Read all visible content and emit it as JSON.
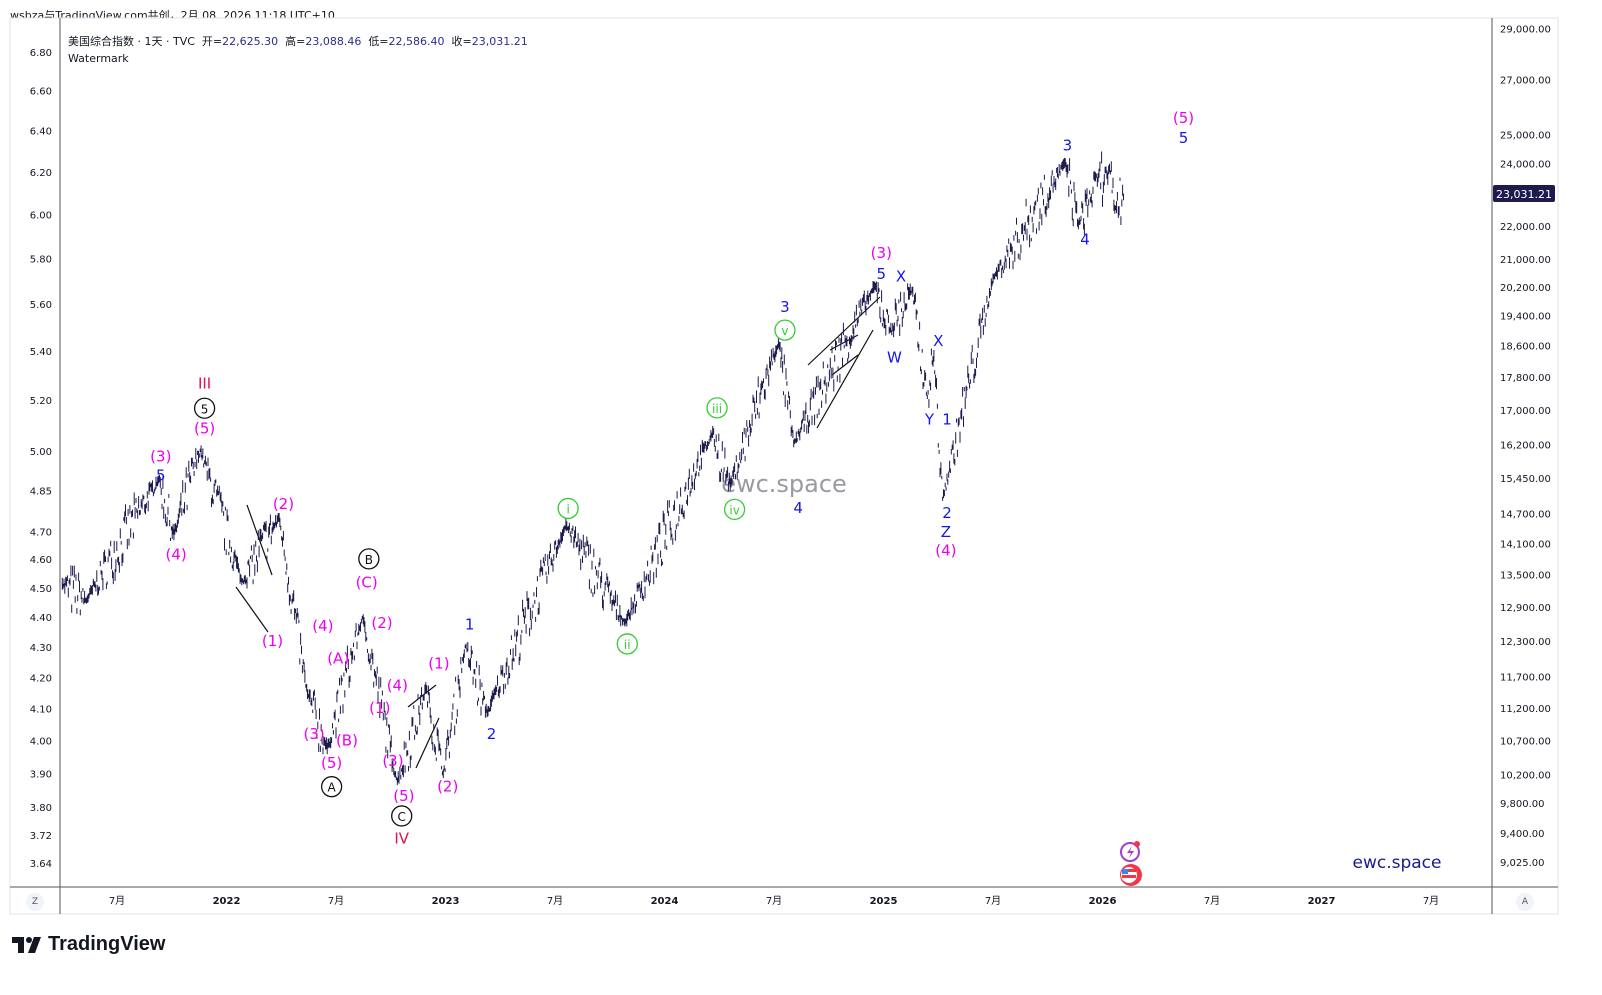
{
  "header": {
    "attribution": "wsbza与TradingView.com共创，2月 08, 2026 11:18 UTC+10"
  },
  "legend": {
    "symbol": "美国综合指数 · 1天 · TVC",
    "open_label": "开=",
    "open": "22,625.30",
    "high_label": "高=",
    "high": "23,088.46",
    "low_label": "低=",
    "low": "22,586.40",
    "close_label": "收=",
    "close": "23,031.21",
    "watermark_label": "Watermark"
  },
  "footer": {
    "brand": "TradingView",
    "z_button": "Z",
    "a_button": "A"
  },
  "colors": {
    "price": "#1c1b4d",
    "magenta": "#ee00ee",
    "blue": "#1515ee",
    "green": "#33cc33",
    "red": "#e0114b",
    "black": "#111111",
    "last_price_bg": "#1e1a4d"
  },
  "chart_data": {
    "type": "line",
    "scale": "log",
    "title": "美国综合指数 · 1天 · TVC",
    "last_price": "23,031.21",
    "watermark": "ewc.space",
    "signature": "ewc.space",
    "x_ticks": [
      {
        "t": 2021.5,
        "label": "7月"
      },
      {
        "t": 2022,
        "label": "2022"
      },
      {
        "t": 2022.5,
        "label": "7月"
      },
      {
        "t": 2023,
        "label": "2023"
      },
      {
        "t": 2023.5,
        "label": "7月"
      },
      {
        "t": 2024,
        "label": "2024"
      },
      {
        "t": 2024.5,
        "label": "7月"
      },
      {
        "t": 2025,
        "label": "2025"
      },
      {
        "t": 2025.5,
        "label": "7月"
      },
      {
        "t": 2026,
        "label": "2026"
      },
      {
        "t": 2026.5,
        "label": "7月"
      },
      {
        "t": 2027,
        "label": "2027"
      },
      {
        "t": 2027.5,
        "label": "7月"
      }
    ],
    "right_ticks": [
      "29,000.00",
      "27,000.00",
      "25,000.00",
      "24,000.00",
      "22,000.00",
      "21,000.00",
      "20,200.00",
      "19,400.00",
      "18,600.00",
      "17,800.00",
      "17,000.00",
      "16,200.00",
      "15,450.00",
      "14,700.00",
      "14,100.00",
      "13,500.00",
      "12,900.00",
      "12,300.00",
      "11,700.00",
      "11,200.00",
      "10,700.00",
      "10,200.00",
      "9,800.00",
      "9,400.00",
      "9,025.00"
    ],
    "left_ticks": [
      "6.80",
      "6.60",
      "6.40",
      "6.20",
      "6.00",
      "5.80",
      "5.60",
      "5.40",
      "5.20",
      "5.00",
      "4.85",
      "4.70",
      "4.60",
      "4.50",
      "4.40",
      "4.30",
      "4.20",
      "4.10",
      "4.00",
      "3.90",
      "3.80",
      "3.72",
      "3.64"
    ],
    "pivots": [
      [
        2021.25,
        13300
      ],
      [
        2021.36,
        13000
      ],
      [
        2021.69,
        15400
      ],
      [
        2021.76,
        14250
      ],
      [
        2021.88,
        16057
      ],
      [
        2022.07,
        13350
      ],
      [
        2022.24,
        14600
      ],
      [
        2022.37,
        11400
      ],
      [
        2022.46,
        10560
      ],
      [
        2022.62,
        12700
      ],
      [
        2022.78,
        10090
      ],
      [
        2022.91,
        11500
      ],
      [
        2022.99,
        10200
      ],
      [
        2023.09,
        12200
      ],
      [
        2023.19,
        11100
      ],
      [
        2023.55,
        14450
      ],
      [
        2023.82,
        12600
      ],
      [
        2024.22,
        16450
      ],
      [
        2024.3,
        15280
      ],
      [
        2024.52,
        18650
      ],
      [
        2024.59,
        16200
      ],
      [
        2024.96,
        20200
      ],
      [
        2025.03,
        19000
      ],
      [
        2025.13,
        20100
      ],
      [
        2025.2,
        17300
      ],
      [
        2025.23,
        18300
      ],
      [
        2025.27,
        15000
      ],
      [
        2025.5,
        20400
      ],
      [
        2025.83,
        24000
      ],
      [
        2025.89,
        22000
      ],
      [
        2025.98,
        23500
      ],
      [
        2026.02,
        23600
      ],
      [
        2026.06,
        22540
      ],
      [
        2026.1,
        23031
      ]
    ],
    "annotations": [
      {
        "t": 2021.9,
        "p": 17640,
        "text": "III",
        "color": "red",
        "style": "plain"
      },
      {
        "t": 2021.9,
        "p": 17040,
        "text": "5",
        "color": "black",
        "style": "circle"
      },
      {
        "t": 2021.9,
        "p": 16560,
        "text": "(5)",
        "color": "magenta",
        "style": "plain"
      },
      {
        "t": 2021.7,
        "p": 15930,
        "text": "(3)",
        "color": "magenta",
        "style": "plain"
      },
      {
        "t": 2021.7,
        "p": 15640,
        "text": "5",
        "color": "blue",
        "style": "plain"
      },
      {
        "t": 2021.77,
        "p": 13880,
        "text": "(4)",
        "color": "magenta",
        "style": "plain"
      },
      {
        "t": 2022.26,
        "p": 14900,
        "text": "(2)",
        "color": "magenta",
        "style": "plain"
      },
      {
        "t": 2022.21,
        "p": 12300,
        "text": "(1)",
        "color": "magenta",
        "style": "plain"
      },
      {
        "t": 2022.44,
        "p": 12560,
        "text": "(4)",
        "color": "magenta",
        "style": "plain"
      },
      {
        "t": 2022.51,
        "p": 12000,
        "text": "(A)",
        "color": "magenta",
        "style": "plain"
      },
      {
        "t": 2022.4,
        "p": 10800,
        "text": "(3)",
        "color": "magenta",
        "style": "plain"
      },
      {
        "t": 2022.55,
        "p": 10700,
        "text": "(B)",
        "color": "magenta",
        "style": "plain"
      },
      {
        "t": 2022.48,
        "p": 10370,
        "text": "(5)",
        "color": "magenta",
        "style": "plain"
      },
      {
        "t": 2022.48,
        "p": 10030,
        "text": "A",
        "color": "black",
        "style": "circle"
      },
      {
        "t": 2022.65,
        "p": 13800,
        "text": "B",
        "color": "black",
        "style": "circle"
      },
      {
        "t": 2022.64,
        "p": 13350,
        "text": "(C)",
        "color": "magenta",
        "style": "plain"
      },
      {
        "t": 2022.71,
        "p": 12610,
        "text": "(2)",
        "color": "magenta",
        "style": "plain"
      },
      {
        "t": 2022.78,
        "p": 11560,
        "text": "(4)",
        "color": "magenta",
        "style": "plain"
      },
      {
        "t": 2022.7,
        "p": 11200,
        "text": "(1)",
        "color": "magenta",
        "style": "plain"
      },
      {
        "t": 2022.76,
        "p": 10400,
        "text": "(3)",
        "color": "magenta",
        "style": "plain"
      },
      {
        "t": 2022.81,
        "p": 9900,
        "text": "(5)",
        "color": "magenta",
        "style": "plain"
      },
      {
        "t": 2022.8,
        "p": 9650,
        "text": "C",
        "color": "black",
        "style": "circle"
      },
      {
        "t": 2022.8,
        "p": 9330,
        "text": "IV",
        "color": "red",
        "style": "plain"
      },
      {
        "t": 2022.97,
        "p": 11920,
        "text": "(1)",
        "color": "magenta",
        "style": "plain"
      },
      {
        "t": 2023.01,
        "p": 10030,
        "text": "(2)",
        "color": "magenta",
        "style": "plain"
      },
      {
        "t": 2023.11,
        "p": 12590,
        "text": "1",
        "color": "blue",
        "style": "plain"
      },
      {
        "t": 2023.21,
        "p": 10800,
        "text": "2",
        "color": "blue",
        "style": "plain"
      },
      {
        "t": 2023.56,
        "p": 14810,
        "text": "i",
        "color": "green",
        "style": "circle"
      },
      {
        "t": 2023.83,
        "p": 12250,
        "text": "ii",
        "color": "green",
        "style": "circle"
      },
      {
        "t": 2024.24,
        "p": 17050,
        "text": "iii",
        "color": "green",
        "style": "circle"
      },
      {
        "t": 2024.32,
        "p": 14790,
        "text": "iv",
        "color": "green",
        "style": "circle"
      },
      {
        "t": 2024.55,
        "p": 19010,
        "text": "v",
        "color": "green",
        "style": "circle"
      },
      {
        "t": 2024.55,
        "p": 19630,
        "text": "3",
        "color": "blue",
        "style": "plain"
      },
      {
        "t": 2024.61,
        "p": 15350,
        "text": "4",
        "color": "blue",
        "style": "plain"
      },
      {
        "t": 2024.99,
        "p": 21180,
        "text": "(3)",
        "color": "magenta",
        "style": "plain"
      },
      {
        "t": 2024.99,
        "p": 20560,
        "text": "5",
        "color": "blue",
        "style": "plain"
      },
      {
        "t": 2025.08,
        "p": 20500,
        "text": "X",
        "color": "blue",
        "style": "plain"
      },
      {
        "t": 2025.05,
        "p": 18300,
        "text": "W",
        "color": "blue",
        "style": "plain"
      },
      {
        "t": 2025.25,
        "p": 18720,
        "text": "X",
        "color": "blue",
        "style": "plain"
      },
      {
        "t": 2025.21,
        "p": 16770,
        "text": "Y",
        "color": "blue",
        "style": "plain"
      },
      {
        "t": 2025.29,
        "p": 16770,
        "text": "1",
        "color": "blue",
        "style": "plain"
      },
      {
        "t": 2025.29,
        "p": 14720,
        "text": "2",
        "color": "blue",
        "style": "plain"
      },
      {
        "t": 2025.285,
        "p": 14440,
        "text": "Z",
        "color": "blue",
        "style": "plain"
      },
      {
        "t": 2025.285,
        "p": 14060,
        "text": "(4)",
        "color": "magenta",
        "style": "plain"
      },
      {
        "t": 2025.84,
        "p": 24620,
        "text": "3",
        "color": "blue",
        "style": "plain"
      },
      {
        "t": 2025.92,
        "p": 21590,
        "text": "4",
        "color": "blue",
        "style": "plain"
      },
      {
        "t": 2026.37,
        "p": 25580,
        "text": "(5)",
        "color": "magenta",
        "style": "plain"
      },
      {
        "t": 2026.37,
        "p": 24880,
        "text": "5",
        "color": "blue",
        "style": "plain"
      }
    ]
  }
}
